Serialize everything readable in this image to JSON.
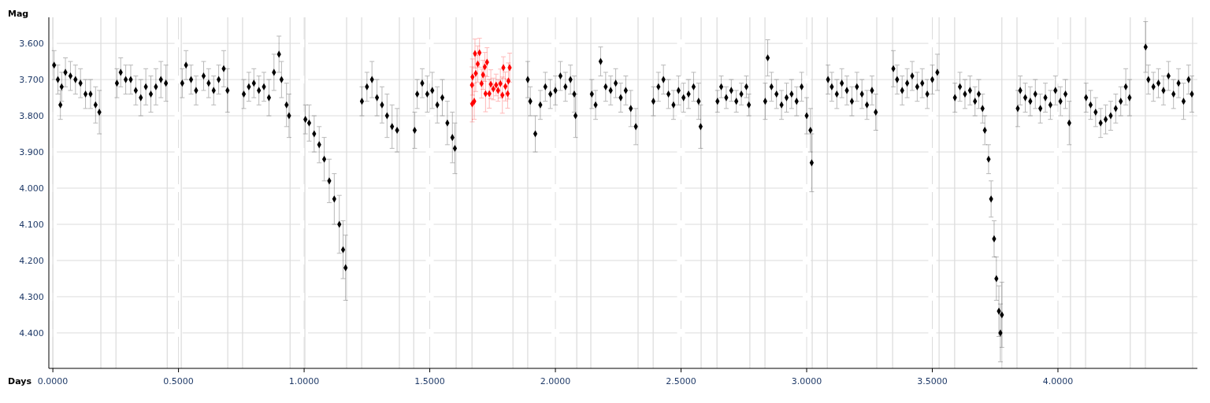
{
  "chart_data": {
    "type": "scatter",
    "xlabel": "Days",
    "ylabel": "Mag",
    "xlim": [
      -0.016,
      4.555
    ],
    "ylim": [
      4.498,
      3.528
    ],
    "xticks": [
      {
        "value": 0,
        "label": "0.0000"
      },
      {
        "value": 0.5,
        "label": "0.5000"
      },
      {
        "value": 1,
        "label": "1.0000"
      },
      {
        "value": 1.5,
        "label": "1.5000"
      },
      {
        "value": 2,
        "label": "2.0000"
      },
      {
        "value": 2.5,
        "label": "2.5000"
      },
      {
        "value": 3,
        "label": "3.0000"
      },
      {
        "value": 3.5,
        "label": "3.5000"
      },
      {
        "value": 4,
        "label": "4.0000"
      }
    ],
    "yticks": [
      {
        "value": 3.6,
        "label": "3.600"
      },
      {
        "value": 3.7,
        "label": "3.700"
      },
      {
        "value": 3.8,
        "label": "3.800"
      },
      {
        "value": 3.9,
        "label": "3.900"
      },
      {
        "value": 4.0,
        "label": "4.000"
      },
      {
        "value": 4.1,
        "label": "4.100"
      },
      {
        "value": 4.2,
        "label": "4.200"
      },
      {
        "value": 4.3,
        "label": "4.300"
      },
      {
        "value": 4.4,
        "label": "4.400"
      }
    ],
    "grid": true,
    "marker": "diamond",
    "ref_lines": [
      {
        "axis": "x",
        "value": 0,
        "color": "#d3d3d3"
      },
      {
        "axis": "x",
        "value": 0.191,
        "color": "#d3d3d3"
      },
      {
        "axis": "x",
        "value": 0.251,
        "color": "#d3d3d3"
      },
      {
        "axis": "x",
        "value": 0.455,
        "color": "#d3d3d3"
      },
      {
        "axis": "x",
        "value": 0.511,
        "color": "#d3d3d3"
      },
      {
        "axis": "x",
        "value": 0.696,
        "color": "#d3d3d3"
      },
      {
        "axis": "x",
        "value": 0.755,
        "color": "#d3d3d3"
      },
      {
        "axis": "x",
        "value": 0.944,
        "color": "#d3d3d3"
      },
      {
        "axis": "x",
        "value": 1.003,
        "color": "#d3d3d3"
      },
      {
        "axis": "x",
        "value": 1.169,
        "color": "#d3d3d3"
      },
      {
        "axis": "x",
        "value": 1.229,
        "color": "#d3d3d3"
      },
      {
        "axis": "x",
        "value": 1.379,
        "color": "#d3d3d3"
      },
      {
        "axis": "x",
        "value": 1.436,
        "color": "#d3d3d3"
      },
      {
        "axis": "x",
        "value": 1.605,
        "color": "#d3d3d3"
      },
      {
        "axis": "x",
        "value": 1.668,
        "color": "#d3d3d3"
      },
      {
        "axis": "x",
        "value": 1.831,
        "color": "#d3d3d3"
      },
      {
        "axis": "x",
        "value": 1.89,
        "color": "#d3d3d3"
      },
      {
        "axis": "x",
        "value": 2.085,
        "color": "#d3d3d3"
      },
      {
        "axis": "x",
        "value": 2.141,
        "color": "#d3d3d3"
      },
      {
        "axis": "x",
        "value": 2.329,
        "color": "#d3d3d3"
      },
      {
        "axis": "x",
        "value": 2.389,
        "color": "#d3d3d3"
      },
      {
        "axis": "x",
        "value": 2.58,
        "color": "#d3d3d3"
      },
      {
        "axis": "x",
        "value": 2.643,
        "color": "#d3d3d3"
      },
      {
        "axis": "x",
        "value": 2.774,
        "color": "#d3d3d3"
      },
      {
        "axis": "x",
        "value": 2.834,
        "color": "#d3d3d3"
      },
      {
        "axis": "x",
        "value": 3.022,
        "color": "#d3d3d3"
      },
      {
        "axis": "x",
        "value": 3.082,
        "color": "#d3d3d3"
      },
      {
        "axis": "x",
        "value": 3.279,
        "color": "#d3d3d3"
      },
      {
        "axis": "x",
        "value": 3.342,
        "color": "#d3d3d3"
      },
      {
        "axis": "x",
        "value": 3.527,
        "color": "#d3d3d3"
      },
      {
        "axis": "x",
        "value": 3.589,
        "color": "#d3d3d3"
      },
      {
        "axis": "x",
        "value": 3.777,
        "color": "#d3d3d3"
      },
      {
        "axis": "x",
        "value": 3.837,
        "color": "#d3d3d3"
      },
      {
        "axis": "x",
        "value": 4.05,
        "color": "#d3d3d3"
      },
      {
        "axis": "x",
        "value": 4.11,
        "color": "#d3d3d3"
      },
      {
        "axis": "x",
        "value": 4.288,
        "color": "#d3d3d3"
      },
      {
        "axis": "x",
        "value": 4.348,
        "color": "#d3d3d3"
      },
      {
        "axis": "x",
        "value": 4.536,
        "color": "#d3d3d3"
      }
    ],
    "series": [
      {
        "color": "#000000",
        "x": [
          0.005,
          0.02,
          0.03,
          0.035,
          0.05,
          0.07,
          0.09,
          0.11,
          0.13,
          0.15,
          0.17,
          0.185,
          0.255,
          0.27,
          0.29,
          0.31,
          0.33,
          0.35,
          0.37,
          0.39,
          0.41,
          0.43,
          0.45,
          0.515,
          0.53,
          0.55,
          0.57,
          0.6,
          0.62,
          0.64,
          0.66,
          0.68,
          0.695,
          0.76,
          0.78,
          0.8,
          0.82,
          0.84,
          0.86,
          0.88,
          0.9,
          0.91,
          0.93,
          0.94,
          1.005,
          1.02,
          1.04,
          1.06,
          1.08,
          1.1,
          1.12,
          1.14,
          1.155,
          1.165,
          1.23,
          1.25,
          1.27,
          1.29,
          1.31,
          1.33,
          1.35,
          1.37,
          1.44,
          1.45,
          1.47,
          1.49,
          1.51,
          1.53,
          1.55,
          1.57,
          1.59,
          1.6,
          1.89,
          1.9,
          1.92,
          1.94,
          1.96,
          1.98,
          2.0,
          2.02,
          2.04,
          2.06,
          2.075,
          2.08,
          2.145,
          2.16,
          2.18,
          2.2,
          2.22,
          2.24,
          2.26,
          2.28,
          2.3,
          2.32,
          2.39,
          2.41,
          2.43,
          2.45,
          2.47,
          2.49,
          2.51,
          2.53,
          2.55,
          2.57,
          2.578,
          2.645,
          2.66,
          2.68,
          2.7,
          2.72,
          2.74,
          2.76,
          2.77,
          2.835,
          2.845,
          2.86,
          2.88,
          2.9,
          2.92,
          2.94,
          2.96,
          2.98,
          3.0,
          3.015,
          3.02,
          3.085,
          3.1,
          3.12,
          3.14,
          3.16,
          3.18,
          3.2,
          3.22,
          3.24,
          3.26,
          3.275,
          3.345,
          3.36,
          3.38,
          3.4,
          3.42,
          3.44,
          3.46,
          3.48,
          3.5,
          3.52,
          3.59,
          3.61,
          3.63,
          3.65,
          3.67,
          3.685,
          3.7,
          3.709,
          3.724,
          3.734,
          3.746,
          3.755,
          3.765,
          3.771,
          3.777,
          3.84,
          3.85,
          3.87,
          3.89,
          3.91,
          3.93,
          3.95,
          3.97,
          3.99,
          4.01,
          4.03,
          4.045,
          4.112,
          4.13,
          4.15,
          4.17,
          4.19,
          4.21,
          4.23,
          4.25,
          4.27,
          4.285,
          4.349,
          4.36,
          4.38,
          4.4,
          4.42,
          4.44,
          4.46,
          4.48,
          4.5,
          4.52,
          4.533
        ],
        "values": [
          3.66,
          3.7,
          3.77,
          3.72,
          3.68,
          3.69,
          3.7,
          3.71,
          3.74,
          3.74,
          3.77,
          3.79,
          3.71,
          3.68,
          3.7,
          3.7,
          3.73,
          3.75,
          3.72,
          3.74,
          3.72,
          3.7,
          3.71,
          3.71,
          3.66,
          3.7,
          3.73,
          3.69,
          3.71,
          3.73,
          3.7,
          3.67,
          3.73,
          3.74,
          3.72,
          3.71,
          3.73,
          3.72,
          3.75,
          3.68,
          3.63,
          3.7,
          3.77,
          3.8,
          3.81,
          3.82,
          3.85,
          3.88,
          3.92,
          3.98,
          4.03,
          4.1,
          4.17,
          4.22,
          3.76,
          3.72,
          3.7,
          3.75,
          3.77,
          3.8,
          3.83,
          3.84,
          3.84,
          3.74,
          3.71,
          3.74,
          3.73,
          3.77,
          3.75,
          3.82,
          3.86,
          3.89,
          3.7,
          3.76,
          3.85,
          3.77,
          3.72,
          3.74,
          3.73,
          3.69,
          3.72,
          3.7,
          3.74,
          3.8,
          3.74,
          3.77,
          3.65,
          3.72,
          3.73,
          3.71,
          3.75,
          3.73,
          3.78,
          3.83,
          3.76,
          3.72,
          3.7,
          3.74,
          3.77,
          3.73,
          3.75,
          3.74,
          3.72,
          3.76,
          3.83,
          3.76,
          3.72,
          3.75,
          3.73,
          3.76,
          3.74,
          3.72,
          3.77,
          3.76,
          3.64,
          3.72,
          3.74,
          3.77,
          3.75,
          3.74,
          3.76,
          3.72,
          3.8,
          3.84,
          3.93,
          3.7,
          3.72,
          3.74,
          3.71,
          3.73,
          3.76,
          3.72,
          3.74,
          3.77,
          3.73,
          3.79,
          3.67,
          3.7,
          3.73,
          3.71,
          3.69,
          3.72,
          3.71,
          3.74,
          3.7,
          3.68,
          3.75,
          3.72,
          3.74,
          3.73,
          3.76,
          3.74,
          3.78,
          3.84,
          3.92,
          4.03,
          4.14,
          4.25,
          4.34,
          4.4,
          4.35,
          3.78,
          3.73,
          3.75,
          3.76,
          3.74,
          3.78,
          3.75,
          3.77,
          3.73,
          3.76,
          3.74,
          3.82,
          3.75,
          3.77,
          3.79,
          3.82,
          3.81,
          3.8,
          3.78,
          3.76,
          3.72,
          3.75,
          3.61,
          3.7,
          3.72,
          3.71,
          3.73,
          3.69,
          3.74,
          3.71,
          3.76,
          3.7,
          3.74
        ],
        "errors": [
          0.04,
          0.04,
          0.04,
          0.04,
          0.04,
          0.04,
          0.04,
          0.04,
          0.04,
          0.04,
          0.05,
          0.06,
          0.04,
          0.04,
          0.04,
          0.04,
          0.04,
          0.05,
          0.05,
          0.05,
          0.05,
          0.05,
          0.05,
          0.04,
          0.04,
          0.04,
          0.04,
          0.04,
          0.04,
          0.04,
          0.04,
          0.05,
          0.06,
          0.04,
          0.04,
          0.04,
          0.04,
          0.04,
          0.05,
          0.05,
          0.05,
          0.05,
          0.06,
          0.06,
          0.04,
          0.05,
          0.05,
          0.05,
          0.06,
          0.06,
          0.07,
          0.08,
          0.08,
          0.09,
          0.04,
          0.04,
          0.05,
          0.05,
          0.05,
          0.06,
          0.06,
          0.06,
          0.05,
          0.04,
          0.04,
          0.05,
          0.05,
          0.05,
          0.05,
          0.06,
          0.07,
          0.07,
          0.05,
          0.04,
          0.05,
          0.04,
          0.04,
          0.04,
          0.04,
          0.04,
          0.04,
          0.04,
          0.05,
          0.06,
          0.04,
          0.04,
          0.04,
          0.04,
          0.04,
          0.04,
          0.04,
          0.04,
          0.05,
          0.05,
          0.04,
          0.04,
          0.04,
          0.04,
          0.04,
          0.04,
          0.04,
          0.04,
          0.04,
          0.05,
          0.06,
          0.03,
          0.03,
          0.03,
          0.03,
          0.03,
          0.03,
          0.03,
          0.03,
          0.05,
          0.05,
          0.04,
          0.04,
          0.04,
          0.04,
          0.04,
          0.04,
          0.04,
          0.05,
          0.06,
          0.08,
          0.04,
          0.04,
          0.04,
          0.04,
          0.04,
          0.04,
          0.04,
          0.04,
          0.04,
          0.04,
          0.05,
          0.05,
          0.04,
          0.04,
          0.04,
          0.04,
          0.04,
          0.04,
          0.04,
          0.04,
          0.05,
          0.04,
          0.04,
          0.04,
          0.04,
          0.04,
          0.04,
          0.04,
          0.04,
          0.04,
          0.05,
          0.05,
          0.06,
          0.07,
          0.08,
          0.09,
          0.05,
          0.04,
          0.04,
          0.04,
          0.04,
          0.04,
          0.04,
          0.04,
          0.04,
          0.04,
          0.04,
          0.06,
          0.04,
          0.04,
          0.04,
          0.04,
          0.04,
          0.04,
          0.04,
          0.04,
          0.05,
          0.05,
          0.07,
          0.04,
          0.04,
          0.04,
          0.04,
          0.04,
          0.04,
          0.04,
          0.05,
          0.04,
          0.05
        ]
      },
      {
        "color": "#ff0000",
        "x": [
          1.668,
          1.669,
          1.67,
          1.677,
          1.68,
          1.683,
          1.691,
          1.698,
          1.706,
          1.712,
          1.719,
          1.722,
          1.728,
          1.737,
          1.743,
          1.753,
          1.764,
          1.772,
          1.781,
          1.789,
          1.793,
          1.801,
          1.81,
          1.813,
          1.818
        ],
        "values": [
          3.715,
          3.767,
          3.693,
          3.76,
          3.628,
          3.683,
          3.657,
          3.626,
          3.711,
          3.687,
          3.665,
          3.739,
          3.652,
          3.739,
          3.713,
          3.726,
          3.715,
          3.73,
          3.711,
          3.743,
          3.667,
          3.719,
          3.739,
          3.704,
          3.667
        ],
        "errors": [
          0.05,
          0.05,
          0.05,
          0.05,
          0.04,
          0.05,
          0.05,
          0.04,
          0.04,
          0.04,
          0.04,
          0.05,
          0.04,
          0.04,
          0.04,
          0.03,
          0.03,
          0.03,
          0.04,
          0.05,
          0.03,
          0.04,
          0.04,
          0.05,
          0.04
        ]
      }
    ]
  }
}
